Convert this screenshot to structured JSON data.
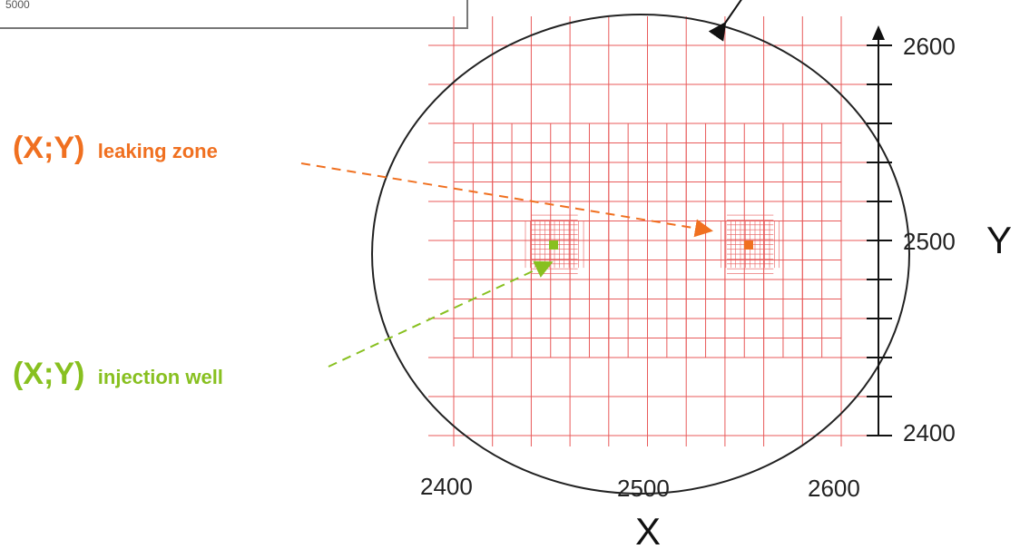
{
  "inset": {
    "label": "5000"
  },
  "colors": {
    "grid": "#e85a5a",
    "leaking": "#f07020",
    "injection": "#88c020",
    "circle": "#222222",
    "axis": "#111111"
  },
  "labels": {
    "leaking": {
      "main": "(X;Y)",
      "sub": "leaking zone"
    },
    "injection": {
      "main": "(X;Y)",
      "sub": "injection well"
    }
  },
  "axes": {
    "x": {
      "title": "X",
      "ticks": [
        "2400",
        "2500",
        "2600"
      ]
    },
    "y": {
      "title": "Y",
      "ticks": [
        "2600",
        "2500",
        "2400"
      ]
    }
  },
  "points": {
    "injection_well": {
      "x": 2452,
      "y": 2498
    },
    "leaking_zone": {
      "x": 2553,
      "y": 2498
    }
  },
  "grid": {
    "coarse_x": [
      2400,
      2420,
      2440,
      2460,
      2480,
      2500,
      2520,
      2540,
      2560,
      2580,
      2600
    ],
    "coarse_y": [
      2400,
      2420,
      2440,
      2460,
      2480,
      2500,
      2520,
      2540,
      2560,
      2580,
      2600
    ],
    "fine_x_step": 10,
    "fine_y_range": [
      2440,
      2560
    ],
    "fine_y_step": 10
  }
}
